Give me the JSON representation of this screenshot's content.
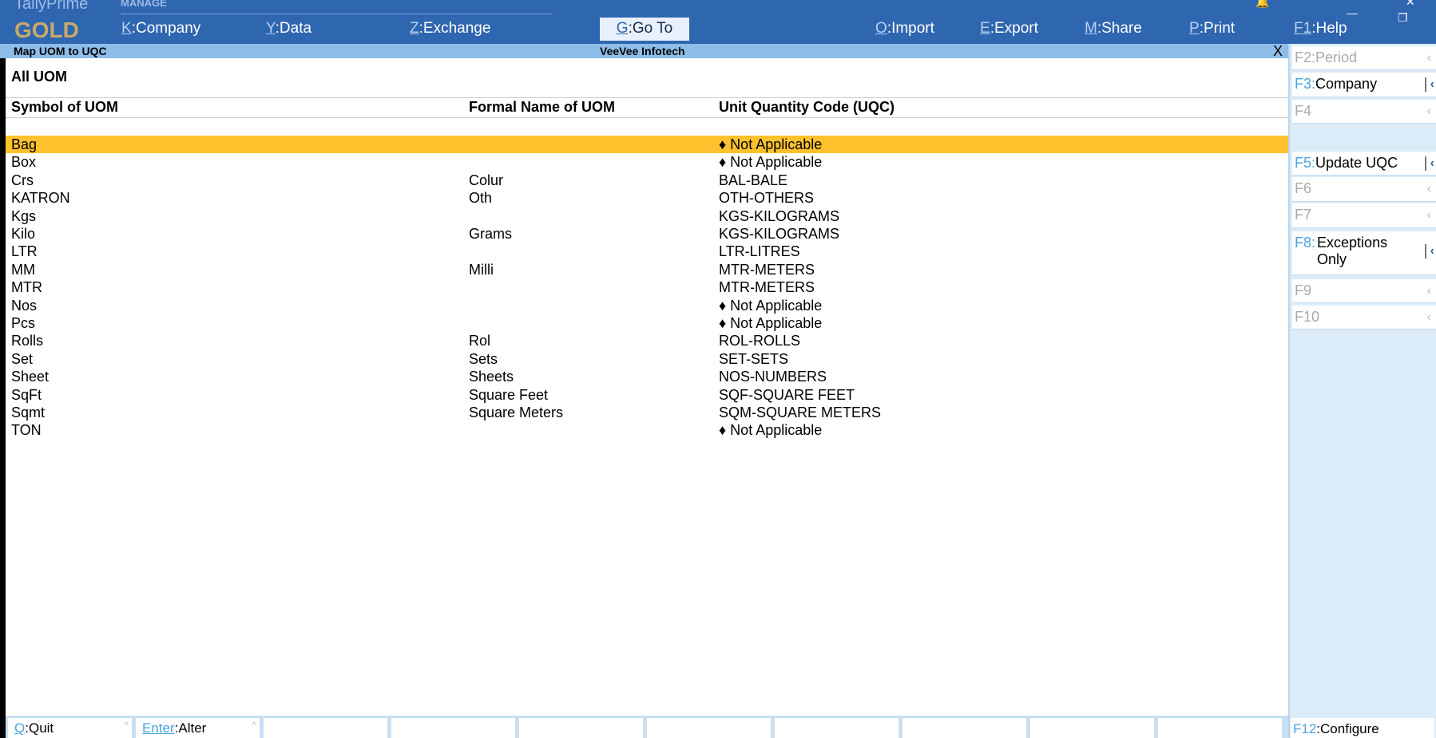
{
  "app": {
    "name": "TallyPrime",
    "edition": "GOLD",
    "section": "MANAGE"
  },
  "menu": [
    {
      "key": "K",
      "label": "Company"
    },
    {
      "key": "Y",
      "label": "Data"
    },
    {
      "key": "Z",
      "label": "Exchange"
    },
    {
      "key": "G",
      "label": "Go To"
    },
    {
      "key": "O",
      "label": "Import"
    },
    {
      "key": "E",
      "label": "Export"
    },
    {
      "key": "M",
      "label": "Share"
    },
    {
      "key": "P",
      "label": "Print"
    },
    {
      "key": "F1",
      "label": "Help"
    }
  ],
  "subheader": {
    "title": "Map UOM to UQC",
    "company": "VeeVee Infotech",
    "close": "X"
  },
  "report": {
    "title": "All UOM",
    "columns": [
      "Symbol of UOM",
      "Formal Name of UOM",
      "Unit Quantity Code (UQC)"
    ],
    "rows": [
      [
        "Bag",
        "",
        "♦ Not Applicable"
      ],
      [
        "Box",
        "",
        "♦ Not Applicable"
      ],
      [
        "Crs",
        "Colur",
        "BAL-BALE"
      ],
      [
        "KATRON",
        "Oth",
        "OTH-OTHERS"
      ],
      [
        "Kgs",
        "",
        "KGS-KILOGRAMS"
      ],
      [
        "Kilo",
        "Grams",
        "KGS-KILOGRAMS"
      ],
      [
        "LTR",
        "",
        "LTR-LITRES"
      ],
      [
        "MM",
        "Milli",
        "MTR-METERS"
      ],
      [
        "MTR",
        "",
        "MTR-METERS"
      ],
      [
        "Nos",
        "",
        "♦ Not Applicable"
      ],
      [
        "Pcs",
        "",
        "♦ Not Applicable"
      ],
      [
        "Rolls",
        "Rol",
        "ROL-ROLLS"
      ],
      [
        "Set",
        "Sets",
        "SET-SETS"
      ],
      [
        "Sheet",
        "Sheets",
        "NOS-NUMBERS"
      ],
      [
        "SqFt",
        "Square Feet",
        "SQF-SQUARE FEET"
      ],
      [
        "Sqmt",
        "Square Meters",
        "SQM-SQUARE METERS"
      ],
      [
        "TON",
        "",
        "♦ Not Applicable"
      ]
    ],
    "selected_row": 0
  },
  "right_panel": [
    {
      "key": "F2",
      "label": "Period",
      "enabled": false
    },
    {
      "key": "F3",
      "label": "Company",
      "enabled": true
    },
    {
      "key": "F4",
      "label": "",
      "enabled": false
    },
    {
      "key": "F5",
      "label": "Update UQC",
      "enabled": true
    },
    {
      "key": "F6",
      "label": "",
      "enabled": false
    },
    {
      "key": "F7",
      "label": "",
      "enabled": false
    },
    {
      "key": "F8",
      "label": "Exceptions Only",
      "enabled": true
    },
    {
      "key": "F9",
      "label": "",
      "enabled": false
    },
    {
      "key": "F10",
      "label": "",
      "enabled": false
    }
  ],
  "bottom": [
    {
      "key": "Q",
      "label": "Quit"
    },
    {
      "key": "Enter",
      "label": "Alter"
    }
  ],
  "f12": {
    "key": "F12",
    "label": "Configure"
  },
  "colors": {
    "header": "#2f66b0",
    "subheader": "#8ebde8",
    "selection": "#fdc12e",
    "accent": "#4aa3df"
  }
}
